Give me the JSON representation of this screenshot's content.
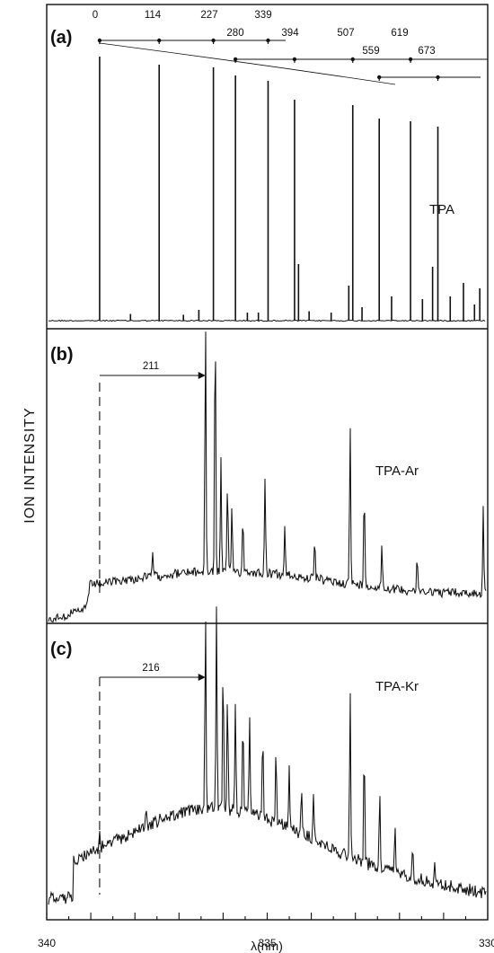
{
  "chart_data": {
    "type": "line",
    "ylabel": "ION INTENSITY",
    "xlabel": "λ(nm)",
    "xlim": [
      340,
      330
    ],
    "xticks": [
      340,
      335,
      330
    ],
    "grid": false,
    "panels": [
      {
        "label": "(a)",
        "name": "TPA",
        "baseline_peak_nm": 338.8,
        "peaks": [
          {
            "x": 338.8,
            "h": 0.98
          },
          {
            "x": 337.45,
            "h": 0.95
          },
          {
            "x": 336.22,
            "h": 0.94
          },
          {
            "x": 335.72,
            "h": 0.91
          },
          {
            "x": 334.98,
            "h": 0.89
          },
          {
            "x": 334.38,
            "h": 0.82
          },
          {
            "x": 334.29,
            "h": 0.21
          },
          {
            "x": 333.06,
            "h": 0.8
          },
          {
            "x": 333.15,
            "h": 0.13
          },
          {
            "x": 332.46,
            "h": 0.75
          },
          {
            "x": 332.18,
            "h": 0.09
          },
          {
            "x": 331.75,
            "h": 0.74
          },
          {
            "x": 331.13,
            "h": 0.72
          },
          {
            "x": 331.25,
            "h": 0.2
          },
          {
            "x": 331.48,
            "h": 0.08
          },
          {
            "x": 330.85,
            "h": 0.09
          },
          {
            "x": 330.55,
            "h": 0.14
          },
          {
            "x": 330.18,
            "h": 0.12
          },
          {
            "x": 330.3,
            "h": 0.06
          },
          {
            "x": 338.1,
            "h": 0.025
          },
          {
            "x": 336.9,
            "h": 0.022
          },
          {
            "x": 335.45,
            "h": 0.03
          },
          {
            "x": 334.05,
            "h": 0.035
          },
          {
            "x": 333.55,
            "h": 0.03
          },
          {
            "x": 332.85,
            "h": 0.05
          },
          {
            "x": 336.55,
            "h": 0.04
          },
          {
            "x": 335.2,
            "h": 0.03
          }
        ],
        "progressions": [
          {
            "start_cm1": 0,
            "labels": [
              "0",
              "114",
              "227",
              "339"
            ]
          },
          {
            "start_cm1": 280,
            "labels": [
              "280",
              "394",
              "507",
              "619"
            ]
          },
          {
            "start_cm1": 559,
            "labels": [
              "559",
              "673"
            ]
          }
        ],
        "assignment_cm1": [
          {
            "label": "0",
            "x": 338.8
          },
          {
            "label": "114",
            "x": 337.45
          },
          {
            "label": "227",
            "x": 336.22
          },
          {
            "label": "339",
            "x": 334.98
          },
          {
            "label": "280",
            "x": 335.72
          },
          {
            "label": "394",
            "x": 334.38
          },
          {
            "label": "507",
            "x": 333.06
          },
          {
            "label": "619",
            "x": 331.75
          },
          {
            "label": "559",
            "x": 332.46
          },
          {
            "label": "673",
            "x": 331.13
          }
        ]
      },
      {
        "label": "(b)",
        "name": "TPA-Ar",
        "shift_label": "211",
        "shift_from_nm": 338.8,
        "shift_to_nm": 336.4,
        "peaks": [
          {
            "x": 336.4,
            "h": 0.97
          },
          {
            "x": 336.18,
            "h": 0.99
          },
          {
            "x": 336.05,
            "h": 0.42
          },
          {
            "x": 335.9,
            "h": 0.33
          },
          {
            "x": 335.8,
            "h": 0.26
          },
          {
            "x": 335.55,
            "h": 0.22
          },
          {
            "x": 335.05,
            "h": 0.37
          },
          {
            "x": 334.6,
            "h": 0.18
          },
          {
            "x": 333.92,
            "h": 0.15
          },
          {
            "x": 333.12,
            "h": 0.62
          },
          {
            "x": 332.8,
            "h": 0.38
          },
          {
            "x": 332.4,
            "h": 0.17
          },
          {
            "x": 331.6,
            "h": 0.12
          },
          {
            "x": 330.1,
            "h": 0.33
          },
          {
            "x": 337.6,
            "h": 0.1
          }
        ]
      },
      {
        "label": "(c)",
        "name": "TPA-Kr",
        "shift_label": "216",
        "shift_from_nm": 338.8,
        "shift_to_nm": 336.4,
        "peaks": [
          {
            "x": 336.4,
            "h": 0.99
          },
          {
            "x": 336.15,
            "h": 0.98
          },
          {
            "x": 336.0,
            "h": 0.7
          },
          {
            "x": 335.9,
            "h": 0.55
          },
          {
            "x": 335.72,
            "h": 0.52
          },
          {
            "x": 335.55,
            "h": 0.47
          },
          {
            "x": 335.4,
            "h": 0.45
          },
          {
            "x": 335.1,
            "h": 0.42
          },
          {
            "x": 334.8,
            "h": 0.34
          },
          {
            "x": 334.5,
            "h": 0.32
          },
          {
            "x": 334.22,
            "h": 0.24
          },
          {
            "x": 333.95,
            "h": 0.2
          },
          {
            "x": 333.12,
            "h": 0.84
          },
          {
            "x": 332.8,
            "h": 0.58
          },
          {
            "x": 332.45,
            "h": 0.36
          },
          {
            "x": 332.1,
            "h": 0.22
          },
          {
            "x": 331.7,
            "h": 0.18
          },
          {
            "x": 331.2,
            "h": 0.12
          },
          {
            "x": 337.75,
            "h": 0.1
          },
          {
            "x": 338.8,
            "h": 0.07
          }
        ]
      }
    ]
  }
}
